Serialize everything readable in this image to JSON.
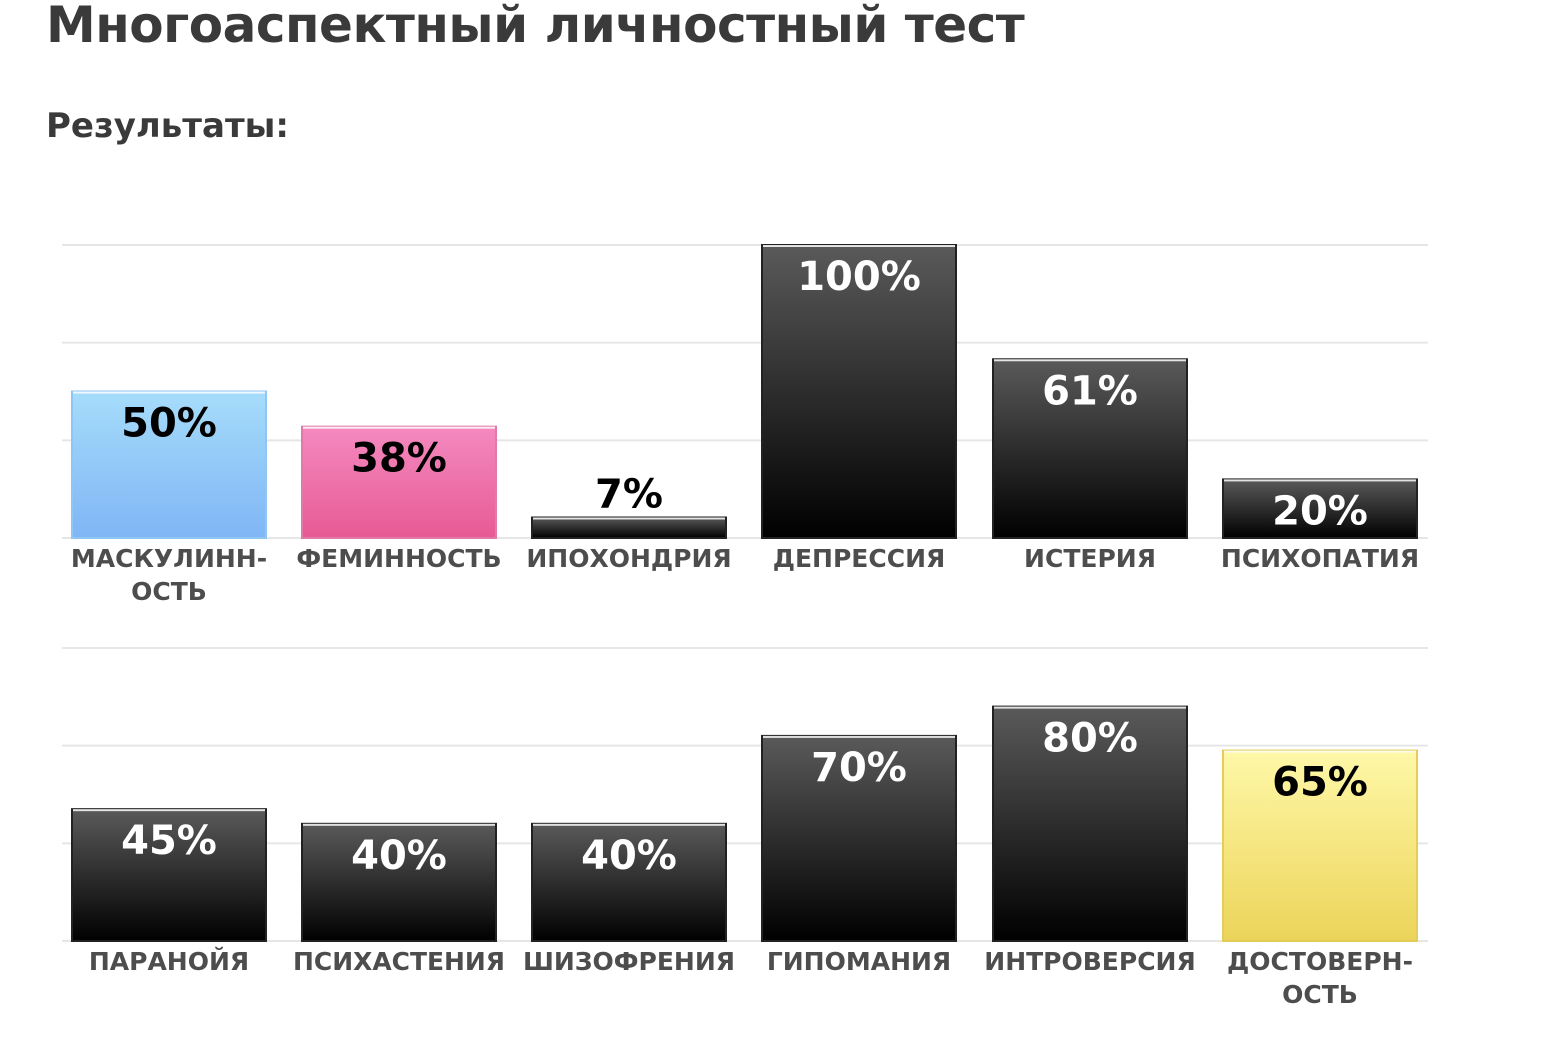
{
  "page": {
    "title": "Многоаспектный личностный тест",
    "results_label": "Результаты:"
  },
  "colors": {
    "gridline": "#e6e6e6",
    "label_text": "#4d4d4d",
    "dark_top": "#5a5a5a",
    "dark_bottom": "#000000",
    "blue_top": "#a6dcfa",
    "blue_bottom": "#7fb6f5",
    "pink_top": "#f48ac0",
    "pink_bottom": "#e75a94",
    "yellow_top": "#fff8a8",
    "yellow_bottom": "#ecd45a"
  },
  "chart_data": [
    {
      "type": "bar",
      "ylim": [
        0,
        100
      ],
      "unit": "%",
      "grid": true,
      "categories": [
        [
          "МАСКУЛИНН-",
          "ОСТЬ"
        ],
        [
          "ФЕМИННОСТЬ"
        ],
        [
          "ИПОХОНДРИЯ"
        ],
        [
          "ДЕПРЕССИЯ"
        ],
        [
          "ИСТЕРИЯ"
        ],
        [
          "ПСИХОПАТИЯ"
        ]
      ],
      "values": [
        50,
        38,
        7,
        100,
        61,
        20
      ],
      "value_labels": [
        "50%",
        "38%",
        "7%",
        "100%",
        "61%",
        "20%"
      ],
      "bar_colors": [
        "blue",
        "pink",
        "dark",
        "dark",
        "dark",
        "dark"
      ]
    },
    {
      "type": "bar",
      "ylim": [
        0,
        100
      ],
      "unit": "%",
      "grid": true,
      "categories": [
        [
          "ПАРАНОЙЯ"
        ],
        [
          "ПСИХАСТЕНИЯ"
        ],
        [
          "ШИЗОФРЕНИЯ"
        ],
        [
          "ГИПОМАНИЯ"
        ],
        [
          "ИНТРОВЕРСИЯ"
        ],
        [
          "ДОСТОВЕРН-",
          "ОСТЬ"
        ]
      ],
      "values": [
        45,
        40,
        40,
        70,
        80,
        65
      ],
      "value_labels": [
        "45%",
        "40%",
        "40%",
        "70%",
        "80%",
        "65%"
      ],
      "bar_colors": [
        "dark",
        "dark",
        "dark",
        "dark",
        "dark",
        "yellow"
      ]
    }
  ]
}
